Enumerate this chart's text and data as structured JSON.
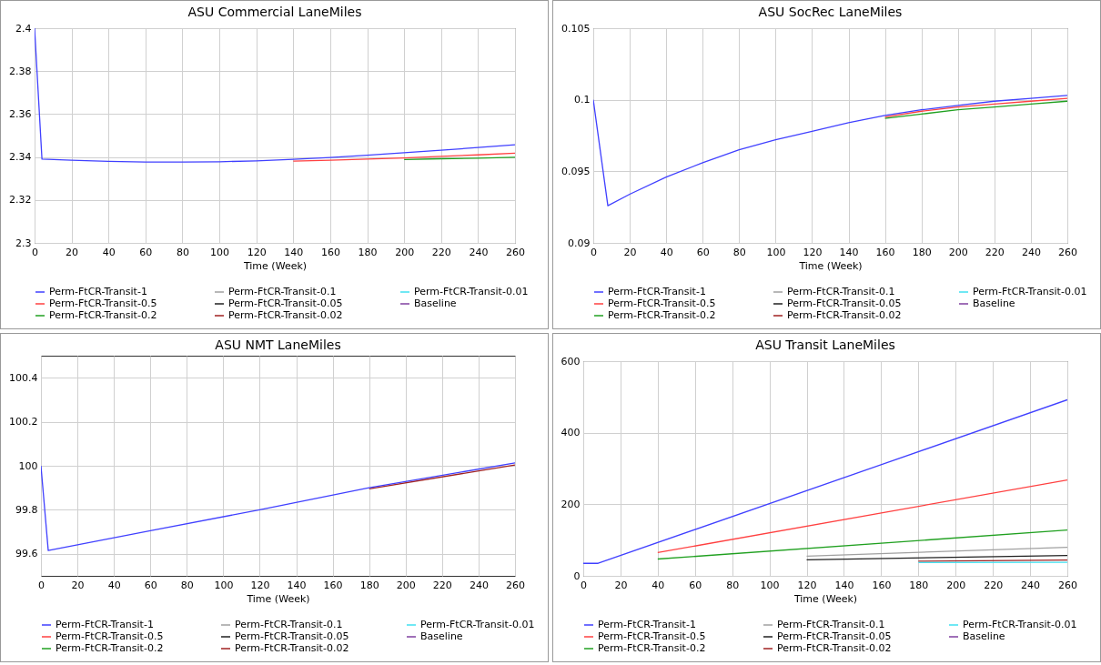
{
  "chart_data": [
    {
      "type": "line",
      "title": "ASU Commercial LaneMiles",
      "xlabel": "Time (Week)",
      "x": [
        0,
        4,
        20,
        40,
        60,
        80,
        100,
        120,
        140,
        160,
        180,
        200,
        220,
        240,
        260
      ],
      "xlim": [
        0,
        260
      ],
      "xticks": [
        0,
        20,
        40,
        60,
        80,
        100,
        120,
        140,
        160,
        180,
        200,
        220,
        240,
        260
      ],
      "ylim": [
        2.3,
        2.4
      ],
      "yticks": [
        2.3,
        2.32,
        2.34,
        2.36,
        2.38,
        2.4
      ],
      "grid": true,
      "legend": "bottom",
      "series": [
        {
          "name": "Perm-FtCR-Transit-1",
          "color": "#4040ff",
          "values": [
            2.4,
            2.339,
            2.3385,
            2.338,
            2.3377,
            2.3377,
            2.3378,
            2.3382,
            2.3389,
            2.3398,
            2.3408,
            2.342,
            2.3432,
            2.3444,
            2.3457
          ]
        },
        {
          "name": "Perm-FtCR-Transit-0.1",
          "color": "#a0a0a0",
          "values": [
            null,
            null,
            null,
            null,
            null,
            null,
            null,
            null,
            null,
            null,
            null,
            null,
            null,
            null,
            null
          ]
        },
        {
          "name": "Perm-FtCR-Transit-0.01",
          "color": "#40e0f0",
          "values": [
            null,
            null,
            null,
            null,
            null,
            null,
            null,
            null,
            null,
            null,
            null,
            null,
            null,
            null,
            null
          ]
        },
        {
          "name": "Perm-FtCR-Transit-0.5",
          "color": "#ff4040",
          "values": [
            null,
            null,
            null,
            null,
            null,
            null,
            null,
            null,
            2.3381,
            2.3385,
            2.339,
            2.3396,
            2.3403,
            2.341,
            2.3418
          ]
        },
        {
          "name": "Perm-FtCR-Transit-0.05",
          "color": "#202020",
          "values": [
            null,
            null,
            null,
            null,
            null,
            null,
            null,
            null,
            null,
            null,
            null,
            null,
            null,
            null,
            null
          ]
        },
        {
          "name": "Baseline",
          "color": "#8040a0",
          "values": [
            null,
            null,
            null,
            null,
            null,
            null,
            null,
            null,
            null,
            null,
            null,
            null,
            null,
            null,
            null
          ]
        },
        {
          "name": "Perm-FtCR-Transit-0.2",
          "color": "#20a020",
          "values": [
            null,
            null,
            null,
            null,
            null,
            null,
            null,
            null,
            null,
            null,
            null,
            2.3388,
            2.3392,
            2.3395,
            2.3399
          ]
        },
        {
          "name": "Perm-FtCR-Transit-0.02",
          "color": "#a02020",
          "values": [
            null,
            null,
            null,
            null,
            null,
            null,
            null,
            null,
            null,
            null,
            null,
            null,
            null,
            null,
            null
          ]
        }
      ]
    },
    {
      "type": "line",
      "title": "ASU SocRec LaneMiles",
      "xlabel": "Time (Week)",
      "x": [
        0,
        8,
        20,
        40,
        60,
        80,
        100,
        120,
        140,
        160,
        180,
        200,
        220,
        240,
        260
      ],
      "xlim": [
        0,
        260
      ],
      "xticks": [
        0,
        20,
        40,
        60,
        80,
        100,
        120,
        140,
        160,
        180,
        200,
        220,
        240,
        260
      ],
      "ylim": [
        0.09,
        0.105
      ],
      "yticks": [
        0.09,
        0.095,
        0.1,
        0.105
      ],
      "grid": true,
      "legend": "bottom",
      "series": [
        {
          "name": "Perm-FtCR-Transit-1",
          "color": "#4040ff",
          "values": [
            0.1,
            0.0926,
            0.0934,
            0.0946,
            0.0956,
            0.0965,
            0.0972,
            0.0978,
            0.0984,
            0.0989,
            0.0993,
            0.0996,
            0.0999,
            0.1001,
            0.1003
          ]
        },
        {
          "name": "Perm-FtCR-Transit-0.1",
          "color": "#a0a0a0",
          "values": [
            null,
            null,
            null,
            null,
            null,
            null,
            null,
            null,
            null,
            null,
            null,
            null,
            null,
            null,
            null
          ]
        },
        {
          "name": "Perm-FtCR-Transit-0.01",
          "color": "#40e0f0",
          "values": [
            null,
            null,
            null,
            null,
            null,
            null,
            null,
            null,
            null,
            null,
            null,
            null,
            null,
            null,
            null
          ]
        },
        {
          "name": "Perm-FtCR-Transit-0.5",
          "color": "#ff4040",
          "values": [
            null,
            null,
            null,
            null,
            null,
            null,
            null,
            null,
            null,
            0.0988,
            0.0992,
            0.0995,
            0.0997,
            0.0999,
            0.1001
          ]
        },
        {
          "name": "Perm-FtCR-Transit-0.05",
          "color": "#202020",
          "values": [
            null,
            null,
            null,
            null,
            null,
            null,
            null,
            null,
            null,
            null,
            null,
            null,
            null,
            null,
            null
          ]
        },
        {
          "name": "Baseline",
          "color": "#8040a0",
          "values": [
            null,
            null,
            null,
            null,
            null,
            null,
            null,
            null,
            null,
            null,
            null,
            null,
            null,
            null,
            null
          ]
        },
        {
          "name": "Perm-FtCR-Transit-0.2",
          "color": "#20a020",
          "values": [
            null,
            null,
            null,
            null,
            null,
            null,
            null,
            null,
            null,
            0.0987,
            0.099,
            0.0993,
            0.0995,
            0.0997,
            0.0999
          ]
        },
        {
          "name": "Perm-FtCR-Transit-0.02",
          "color": "#a02020",
          "values": [
            null,
            null,
            null,
            null,
            null,
            null,
            null,
            null,
            null,
            null,
            null,
            null,
            null,
            null,
            null
          ]
        }
      ]
    },
    {
      "type": "line",
      "title": "ASU NMT LaneMiles",
      "xlabel": "Time (Week)",
      "x": [
        0,
        4,
        60,
        120,
        180,
        260
      ],
      "xlim": [
        0,
        260
      ],
      "xticks": [
        0,
        20,
        40,
        60,
        80,
        100,
        120,
        140,
        160,
        180,
        200,
        220,
        240,
        260
      ],
      "ylim": [
        99.5,
        100.5
      ],
      "yticks": [
        99.6,
        99.8,
        100,
        100.2,
        100.4
      ],
      "grid": true,
      "legend": "bottom",
      "series": [
        {
          "name": "Perm-FtCR-Transit-1",
          "color": "#4040ff",
          "values": [
            100,
            99.615,
            99.705,
            99.8,
            99.9,
            100.013
          ]
        },
        {
          "name": "Perm-FtCR-Transit-0.1",
          "color": "#a0a0a0",
          "values": [
            null,
            null,
            null,
            null,
            null,
            null
          ]
        },
        {
          "name": "Perm-FtCR-Transit-0.01",
          "color": "#40e0f0",
          "values": [
            null,
            null,
            null,
            null,
            null,
            null
          ]
        },
        {
          "name": "Perm-FtCR-Transit-0.5",
          "color": "#ff4040",
          "values": [
            null,
            null,
            null,
            null,
            null,
            null
          ]
        },
        {
          "name": "Perm-FtCR-Transit-0.05",
          "color": "#202020",
          "values": [
            null,
            null,
            null,
            null,
            null,
            null
          ]
        },
        {
          "name": "Baseline",
          "color": "#8040a0",
          "values": [
            null,
            null,
            null,
            null,
            null,
            null
          ]
        },
        {
          "name": "Perm-FtCR-Transit-0.2",
          "color": "#20a020",
          "values": [
            null,
            null,
            null,
            null,
            null,
            null
          ]
        },
        {
          "name": "Perm-FtCR-Transit-0.02",
          "color": "#a02020",
          "values": [
            null,
            null,
            null,
            null,
            99.895,
            100.004
          ]
        }
      ]
    },
    {
      "type": "line",
      "title": "ASU Transit LaneMiles",
      "xlabel": "Time (Week)",
      "x": [
        0,
        8,
        260
      ],
      "xlim": [
        0,
        260
      ],
      "xticks": [
        0,
        20,
        40,
        60,
        80,
        100,
        120,
        140,
        160,
        180,
        200,
        220,
        240,
        260
      ],
      "ylim": [
        0,
        600
      ],
      "yticks": [
        0,
        200,
        400,
        600
      ],
      "grid": true,
      "legend": "bottom",
      "series": [
        {
          "name": "Perm-FtCR-Transit-1",
          "color": "#4040ff",
          "values": [
            35,
            35,
            492
          ]
        },
        {
          "name": "Perm-FtCR-Transit-0.1",
          "color": "#a0a0a0",
          "x": [
            120,
            260
          ],
          "values": [
            55,
            80
          ]
        },
        {
          "name": "Perm-FtCR-Transit-0.01",
          "color": "#40e0f0",
          "x": [
            180,
            260
          ],
          "values": [
            37,
            38
          ]
        },
        {
          "name": "Perm-FtCR-Transit-0.5",
          "color": "#ff4040",
          "x": [
            40,
            260
          ],
          "values": [
            65,
            268
          ]
        },
        {
          "name": "Perm-FtCR-Transit-0.05",
          "color": "#202020",
          "x": [
            120,
            260
          ],
          "values": [
            45,
            57
          ]
        },
        {
          "name": "Baseline",
          "color": "#8040a0",
          "values": [
            null,
            null,
            null
          ]
        },
        {
          "name": "Perm-FtCR-Transit-0.2",
          "color": "#20a020",
          "x": [
            40,
            260
          ],
          "values": [
            47,
            128
          ]
        },
        {
          "name": "Perm-FtCR-Transit-0.02",
          "color": "#a02020",
          "x": [
            180,
            260
          ],
          "values": [
            41,
            44
          ]
        }
      ]
    }
  ]
}
